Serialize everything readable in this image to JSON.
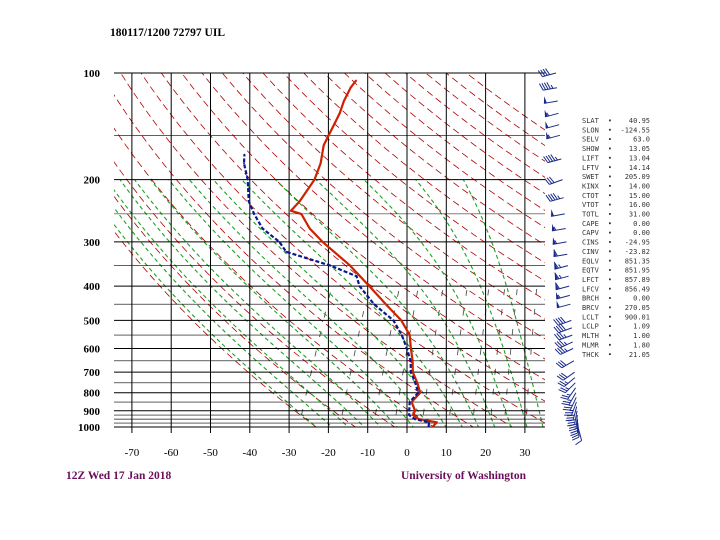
{
  "chart_data": {
    "type": "line",
    "title": "180117/1200 72797  UIL",
    "footer_left": "12Z Wed 17 Jan 2018",
    "footer_right": "University of Washington",
    "y_scale": "log-pressure",
    "y_ticks": [
      "100",
      "200",
      "300",
      "400",
      "500",
      "600",
      "700",
      "800",
      "900",
      "1000"
    ],
    "x_ticks": [
      "-70",
      "-60",
      "-50",
      "-40",
      "-30",
      "-20",
      "-10",
      "0",
      "10",
      "20",
      "30"
    ],
    "xlim": [
      -78,
      35
    ],
    "ylim": [
      1000,
      100
    ],
    "skew_deg_per_level": 45,
    "series": [
      {
        "id": "temperature",
        "color": "#cc2200",
        "points": [
          [
            1000,
            6.5
          ],
          [
            970,
            7
          ],
          [
            950,
            2
          ],
          [
            925,
            0
          ],
          [
            900,
            0
          ],
          [
            850,
            -2
          ],
          [
            800,
            -1
          ],
          [
            750,
            -3
          ],
          [
            700,
            -5.5
          ],
          [
            650,
            -7
          ],
          [
            600,
            -9
          ],
          [
            550,
            -11
          ],
          [
            500,
            -15
          ],
          [
            450,
            -21
          ],
          [
            400,
            -27.5
          ],
          [
            350,
            -35
          ],
          [
            300,
            -45
          ],
          [
            275,
            -50
          ],
          [
            250,
            -54
          ],
          [
            245,
            -57
          ],
          [
            230,
            -56
          ],
          [
            200,
            -55
          ],
          [
            180,
            -55.5
          ],
          [
            160,
            -57
          ],
          [
            140,
            -57
          ],
          [
            130,
            -57
          ],
          [
            120,
            -57.5
          ],
          [
            110,
            -57.5
          ],
          [
            105,
            -57
          ]
        ]
      },
      {
        "id": "dewpoint",
        "color": "#0a1a8c",
        "points": [
          [
            1000,
            5.5
          ],
          [
            970,
            5
          ],
          [
            950,
            1
          ],
          [
            925,
            -1
          ],
          [
            900,
            -1.5
          ],
          [
            850,
            -2.5
          ],
          [
            800,
            -1.5
          ],
          [
            750,
            -3.5
          ],
          [
            700,
            -6
          ],
          [
            650,
            -7.5
          ],
          [
            600,
            -10
          ],
          [
            550,
            -13
          ],
          [
            500,
            -17
          ],
          [
            450,
            -24
          ],
          [
            400,
            -30
          ],
          [
            375,
            -32
          ],
          [
            350,
            -40
          ],
          [
            320,
            -53
          ],
          [
            300,
            -56
          ],
          [
            275,
            -62
          ],
          [
            250,
            -66
          ],
          [
            230,
            -69
          ],
          [
            200,
            -72
          ],
          [
            180,
            -75
          ],
          [
            170,
            -76
          ]
        ]
      }
    ],
    "indices": [
      {
        "label": "SLAT",
        "value": "40.95"
      },
      {
        "label": "SLON",
        "value": "-124.55"
      },
      {
        "label": "SELV",
        "value": "63.0"
      },
      {
        "label": "SHOW",
        "value": "13.05"
      },
      {
        "label": "LIFT",
        "value": "13.04"
      },
      {
        "label": "LFTV",
        "value": "14.14"
      },
      {
        "label": "SWET",
        "value": "205.09"
      },
      {
        "label": "KINX",
        "value": "14.00"
      },
      {
        "label": "CTOT",
        "value": "15.00"
      },
      {
        "label": "VTOT",
        "value": "16.00"
      },
      {
        "label": "TOTL",
        "value": "31.00"
      },
      {
        "label": "CAPE",
        "value": "0.00"
      },
      {
        "label": "CAPV",
        "value": "0.00"
      },
      {
        "label": "CINS",
        "value": "-24.95"
      },
      {
        "label": "CINV",
        "value": "-23.82"
      },
      {
        "label": "EQLV",
        "value": "851.35"
      },
      {
        "label": "EQTV",
        "value": "851.95"
      },
      {
        "label": "LFCT",
        "value": "857.89"
      },
      {
        "label": "LFCV",
        "value": "856.49"
      },
      {
        "label": "BRCH",
        "value": "0.00"
      },
      {
        "label": "BRCV",
        "value": "270.05"
      },
      {
        "label": "LCLT",
        "value": "900.01"
      },
      {
        "label": "LCLP",
        "value": "1.09"
      },
      {
        "label": "MLTH",
        "value": "1.00"
      },
      {
        "label": "MLMR",
        "value": "1.80"
      },
      {
        "label": "THCK",
        "value": "21.05"
      }
    ],
    "wind_barbs": [
      {
        "p": 1000,
        "dir": 165,
        "spd": 10
      },
      {
        "p": 975,
        "dir": 175,
        "spd": 20
      },
      {
        "p": 950,
        "dir": 180,
        "spd": 25
      },
      {
        "p": 925,
        "dir": 185,
        "spd": 30
      },
      {
        "p": 900,
        "dir": 190,
        "spd": 30
      },
      {
        "p": 875,
        "dir": 195,
        "spd": 30
      },
      {
        "p": 850,
        "dir": 200,
        "spd": 25
      },
      {
        "p": 825,
        "dir": 205,
        "spd": 25
      },
      {
        "p": 800,
        "dir": 210,
        "spd": 25
      },
      {
        "p": 775,
        "dir": 215,
        "spd": 25
      },
      {
        "p": 750,
        "dir": 225,
        "spd": 25
      },
      {
        "p": 725,
        "dir": 230,
        "spd": 25
      },
      {
        "p": 700,
        "dir": 235,
        "spd": 30
      },
      {
        "p": 650,
        "dir": 240,
        "spd": 30
      },
      {
        "p": 600,
        "dir": 245,
        "spd": 35
      },
      {
        "p": 575,
        "dir": 245,
        "spd": 35
      },
      {
        "p": 550,
        "dir": 250,
        "spd": 35
      },
      {
        "p": 525,
        "dir": 250,
        "spd": 40
      },
      {
        "p": 500,
        "dir": 250,
        "spd": 40
      },
      {
        "p": 450,
        "dir": 255,
        "spd": 50
      },
      {
        "p": 425,
        "dir": 255,
        "spd": 55
      },
      {
        "p": 400,
        "dir": 255,
        "spd": 60
      },
      {
        "p": 375,
        "dir": 255,
        "spd": 65
      },
      {
        "p": 350,
        "dir": 255,
        "spd": 65
      },
      {
        "p": 325,
        "dir": 260,
        "spd": 60
      },
      {
        "p": 300,
        "dir": 260,
        "spd": 55
      },
      {
        "p": 275,
        "dir": 260,
        "spd": 55
      },
      {
        "p": 250,
        "dir": 260,
        "spd": 50
      },
      {
        "p": 225,
        "dir": 255,
        "spd": 45
      },
      {
        "p": 200,
        "dir": 250,
        "spd": 30
      },
      {
        "p": 175,
        "dir": 255,
        "spd": 45
      },
      {
        "p": 150,
        "dir": 255,
        "spd": 55
      },
      {
        "p": 140,
        "dir": 255,
        "spd": 50
      },
      {
        "p": 130,
        "dir": 255,
        "spd": 55
      },
      {
        "p": 120,
        "dir": 260,
        "spd": 50
      },
      {
        "p": 110,
        "dir": 260,
        "spd": 45
      },
      {
        "p": 100,
        "dir": 255,
        "spd": 40
      }
    ]
  },
  "colors": {
    "temperature": "#cc2200",
    "dewpoint": "#0a1a8c",
    "dry_adiabat": "#b00000",
    "moist_adiabat": "#1fa01f",
    "mixing_ratio": "#555555",
    "grid": "#000000",
    "title_text": "#000000",
    "footer_text": "#6a0d5a"
  }
}
